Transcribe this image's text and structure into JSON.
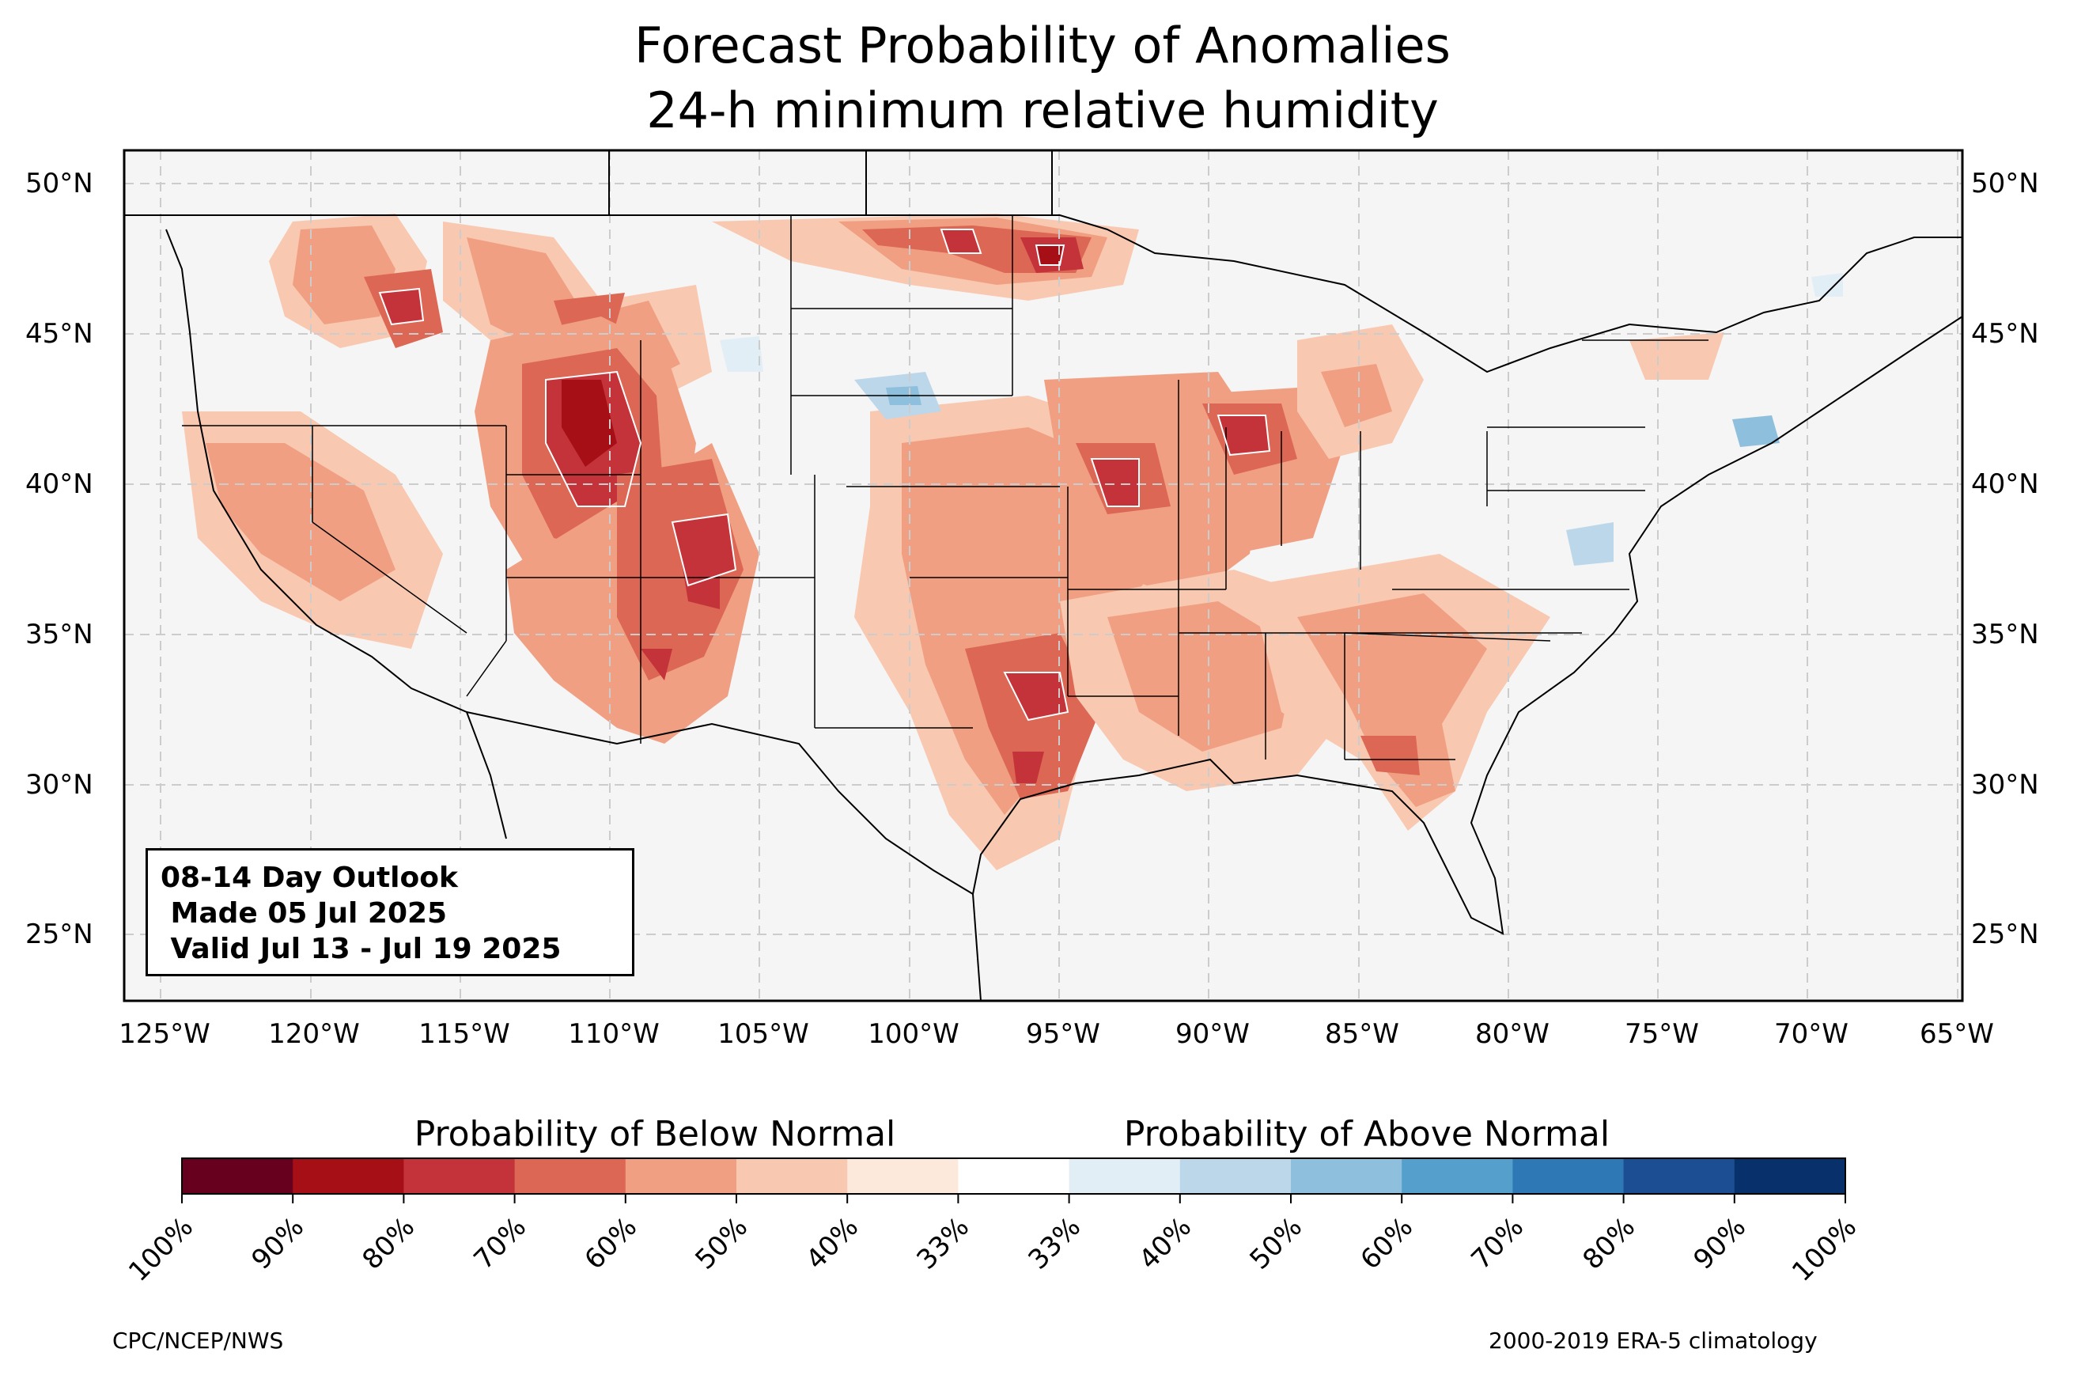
{
  "title": {
    "line1": "Forecast Probability of Anomalies",
    "line2": "24-h minimum relative humidity"
  },
  "map": {
    "lat_labels": [
      "50°N",
      "45°N",
      "40°N",
      "35°N",
      "30°N",
      "25°N"
    ],
    "lon_labels": [
      "125°W",
      "120°W",
      "115°W",
      "110°W",
      "105°W",
      "100°W",
      "95°W",
      "90°W",
      "85°W",
      "80°W",
      "75°W",
      "70°W",
      "65°W"
    ],
    "background_color": "#f5f5f5"
  },
  "outlook_box": {
    "line1": "08-14 Day Outlook",
    "line2": " Made 05 Jul 2025",
    "line3": " Valid Jul 13 - Jul 19 2025"
  },
  "colorbar": {
    "below_label": "Probability of Below Normal",
    "above_label": "Probability of Above Normal",
    "tick_labels": [
      "100%",
      "90%",
      "80%",
      "70%",
      "60%",
      "50%",
      "40%",
      "33%",
      "33%",
      "40%",
      "50%",
      "60%",
      "70%",
      "80%",
      "90%",
      "100%"
    ],
    "colors": [
      "#67001f",
      "#a50f15",
      "#c4323a",
      "#dc6755",
      "#f09f82",
      "#f9c8b0",
      "#fde9dc",
      "#ffffff",
      "#e2eef6",
      "#bcd7ea",
      "#8ebfdc",
      "#549fcc",
      "#2f78b6",
      "#1b4e92",
      "#08306b"
    ]
  },
  "footer": {
    "left": "CPC/NCEP/NWS",
    "right": "2000-2019 ERA-5 climatology"
  }
}
